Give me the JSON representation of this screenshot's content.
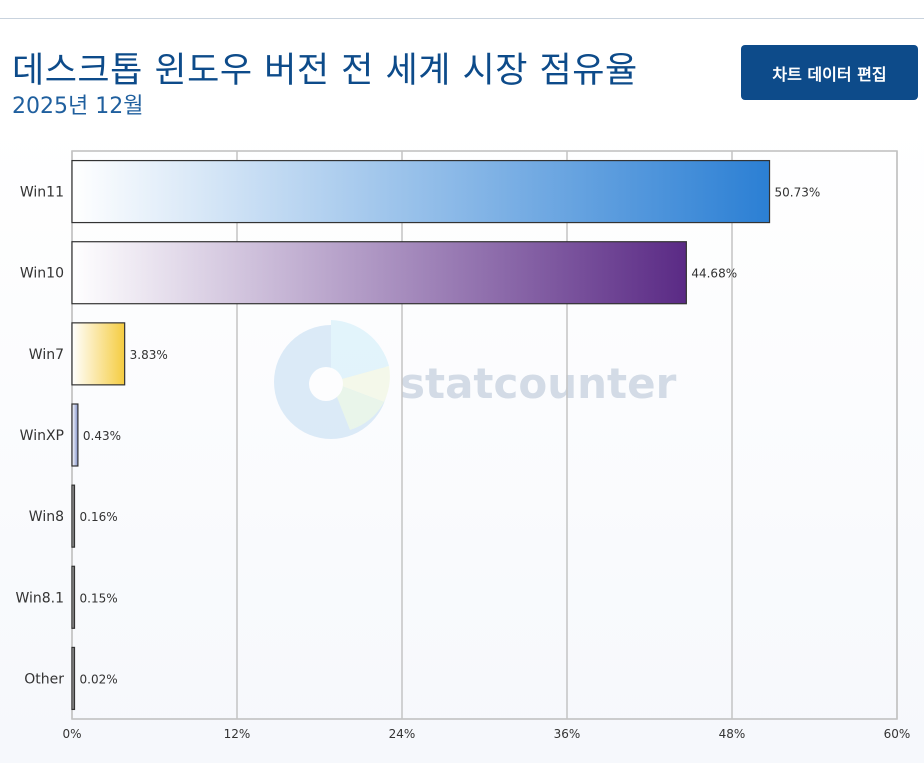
{
  "header": {
    "title": "데스크톱 윈도우 버전 전 세계 시장 점유율",
    "subtitle": "2025년 12월",
    "edit_button_label": "차트 데이터 편집"
  },
  "watermark": {
    "brand": "statcounter"
  },
  "chart_data": {
    "type": "bar",
    "orientation": "horizontal",
    "categories": [
      "Win11",
      "Win10",
      "Win7",
      "WinXP",
      "Win8",
      "Win8.1",
      "Other"
    ],
    "values": [
      50.73,
      44.68,
      3.83,
      0.43,
      0.16,
      0.15,
      0.02
    ],
    "value_labels": [
      "50.73%",
      "44.68%",
      "3.83%",
      "0.43%",
      "0.16%",
      "0.15%",
      "0.02%"
    ],
    "xlim": [
      0,
      60
    ],
    "xticks": [
      0,
      12,
      24,
      36,
      48,
      60
    ],
    "xtick_labels": [
      "0%",
      "12%",
      "24%",
      "36%",
      "48%",
      "60%"
    ],
    "grid": true,
    "bar_colors": [
      [
        "#ffffff",
        "#2b7fd4"
      ],
      [
        "#ffffff",
        "#5a2a85"
      ],
      [
        "#ffffff",
        "#f5cc40"
      ],
      [
        "#ffffff",
        "#8090c8"
      ],
      [
        "#ffffff",
        "#2b2b2b"
      ],
      [
        "#ffffff",
        "#2b2b2b"
      ],
      [
        "#ffffff",
        "#2b2b2b"
      ]
    ]
  }
}
